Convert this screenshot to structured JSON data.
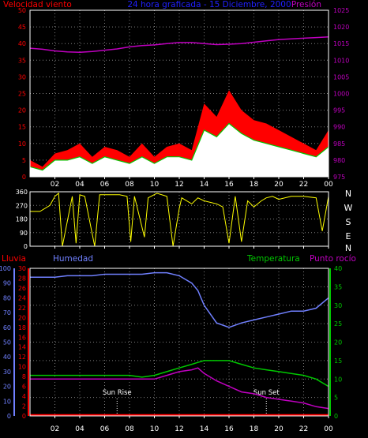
{
  "header": {
    "left_title": "Velocidad viento",
    "center_title": "24 hora graficada - 15 Diciembre, 2000",
    "right_title": "Presión"
  },
  "lower_header": {
    "rain": "Lluvia",
    "humidity": "Humedad",
    "temperature": "Temperatura",
    "dewpoint": "Punto rocío"
  },
  "compass": [
    "N",
    "W",
    "S",
    "E",
    "N"
  ],
  "annotations": {
    "sunrise": "Sun Rise",
    "sunset": "Sun Set"
  },
  "colors": {
    "wind_gust": "#ff0000",
    "wind_avg": "#00c800",
    "wind_low": "#ffffff",
    "pressure": "#c000c0",
    "direction": "#ffff00",
    "humidity": "#7080ff",
    "temperature": "#00c800",
    "dewpoint": "#c000c0",
    "rain": "#ff0000",
    "axis_left_top": "#ff0000",
    "axis_right_top": "#c000c0",
    "axis_humidity": "#7080ff",
    "axis_rain": "#ff0000",
    "axis_temp": "#00c800"
  },
  "chart_data": [
    {
      "type": "line",
      "name": "wind_pressure",
      "x_ticks": [
        "02",
        "04",
        "06",
        "08",
        "10",
        "12",
        "14",
        "16",
        "18",
        "20",
        "22",
        "00"
      ],
      "y_left": {
        "label": "Velocidad viento",
        "ticks": [
          0,
          5,
          10,
          15,
          20,
          25,
          30,
          35,
          40,
          45,
          50
        ],
        "ylim": [
          0,
          50
        ]
      },
      "y_right": {
        "label": "Presión",
        "ticks": [
          975,
          980,
          985,
          990,
          995,
          1000,
          1005,
          1010,
          1015,
          1020,
          1025
        ],
        "ylim": [
          975,
          1025
        ]
      },
      "x": [
        0,
        1,
        2,
        3,
        4,
        5,
        6,
        7,
        8,
        9,
        10,
        11,
        12,
        13,
        14,
        15,
        16,
        17,
        18,
        19,
        20,
        21,
        22,
        23,
        24
      ],
      "series": [
        {
          "name": "gust",
          "values": [
            5,
            3,
            7,
            8,
            10,
            6,
            9,
            8,
            6,
            10,
            6,
            9,
            10,
            8,
            22,
            18,
            26,
            20,
            17,
            16,
            14,
            12,
            10,
            8,
            14
          ]
        },
        {
          "name": "average",
          "values": [
            3,
            2,
            5,
            5,
            6,
            4,
            6,
            5,
            4,
            6,
            4,
            6,
            6,
            5,
            14,
            12,
            16,
            13,
            11,
            10,
            9,
            8,
            7,
            6,
            9
          ]
        },
        {
          "name": "pressure",
          "values": [
            1013.6,
            1013.3,
            1012.8,
            1012.5,
            1012.4,
            1012.6,
            1013.0,
            1013.4,
            1014.0,
            1014.4,
            1014.6,
            1015.0,
            1015.3,
            1015.3,
            1015.0,
            1014.7,
            1014.8,
            1015.0,
            1015.4,
            1015.8,
            1016.2,
            1016.4,
            1016.6,
            1016.8,
            1017.0
          ]
        }
      ]
    },
    {
      "type": "line",
      "name": "wind_direction",
      "x_ticks": [
        "02",
        "04",
        "06",
        "08",
        "10",
        "12",
        "14",
        "16",
        "18",
        "20",
        "22",
        "00"
      ],
      "y_left": {
        "ticks": [
          0,
          90,
          180,
          270,
          360
        ],
        "ylim": [
          0,
          360
        ]
      },
      "x": [
        0,
        0.8,
        1.6,
        2,
        2.3,
        2.6,
        3.4,
        3.7,
        4,
        4.4,
        5.2,
        5.6,
        6,
        7.2,
        7.8,
        8.1,
        8.4,
        9.2,
        9.5,
        10.2,
        11,
        11.5,
        12,
        12.2,
        13,
        13.5,
        14,
        15,
        15.5,
        16,
        16.5,
        17,
        17.5,
        18,
        18.6,
        19,
        19.5,
        20,
        21,
        22,
        23,
        23.5,
        24
      ],
      "series": [
        {
          "name": "direction",
          "values": [
            230,
            230,
            270,
            330,
            350,
            0,
            330,
            20,
            340,
            330,
            0,
            340,
            340,
            340,
            330,
            30,
            330,
            60,
            320,
            350,
            330,
            0,
            250,
            320,
            280,
            320,
            300,
            280,
            260,
            20,
            330,
            30,
            300,
            260,
            300,
            320,
            330,
            310,
            330,
            330,
            320,
            100,
            330
          ]
        }
      ]
    },
    {
      "type": "line",
      "name": "humidity_temp",
      "x_ticks": [
        "02",
        "04",
        "06",
        "08",
        "10",
        "12",
        "14",
        "16",
        "18",
        "20",
        "22",
        "00"
      ],
      "y_humidity": {
        "label": "Humedad",
        "ticks": [
          0,
          10,
          20,
          30,
          40,
          50,
          60,
          70,
          80,
          90,
          100
        ],
        "ylim": [
          0,
          100
        ]
      },
      "y_rain": {
        "label": "Lluvia",
        "ticks": [
          0,
          2,
          4,
          6,
          8,
          10,
          12,
          14,
          16,
          18,
          20,
          22,
          24,
          26,
          28,
          30
        ],
        "ylim": [
          0,
          30
        ]
      },
      "y_temp": {
        "label": "Temperatura",
        "ticks": [
          0,
          5,
          10,
          15,
          20,
          25,
          30,
          35,
          40
        ],
        "ylim": [
          0,
          40
        ]
      },
      "x": [
        0,
        1,
        2,
        3,
        4,
        5,
        6,
        7,
        8,
        9,
        10,
        11,
        12,
        13,
        13.5,
        14,
        15,
        16,
        17,
        18,
        19,
        20,
        21,
        22,
        23,
        24
      ],
      "series": [
        {
          "name": "humidity",
          "values": [
            94,
            94,
            94,
            95,
            95,
            95,
            96,
            96,
            96,
            96,
            97,
            97,
            95,
            90,
            85,
            75,
            63,
            60,
            63,
            65,
            67,
            69,
            71,
            71,
            73,
            80
          ]
        },
        {
          "name": "temperature",
          "values": [
            11,
            11,
            11,
            11,
            11,
            11,
            11,
            11,
            11,
            10.5,
            11,
            12,
            13,
            14,
            14.5,
            15,
            15,
            15,
            14,
            13,
            12.5,
            12,
            11.5,
            11,
            10,
            8
          ]
        },
        {
          "name": "dewpoint",
          "values": [
            10,
            10,
            10,
            10,
            10,
            10,
            10,
            10,
            10,
            10,
            10,
            11,
            12,
            12.5,
            13,
            11.5,
            9.5,
            8,
            6.5,
            6,
            5,
            4.5,
            4,
            3.5,
            2.5,
            2
          ]
        },
        {
          "name": "rain",
          "values": [
            0,
            0,
            0,
            0,
            0,
            0,
            0,
            0,
            0,
            0,
            0,
            0,
            0,
            0,
            0,
            0,
            0,
            0,
            0,
            0,
            0,
            0,
            0,
            0,
            0,
            0
          ]
        }
      ]
    }
  ]
}
